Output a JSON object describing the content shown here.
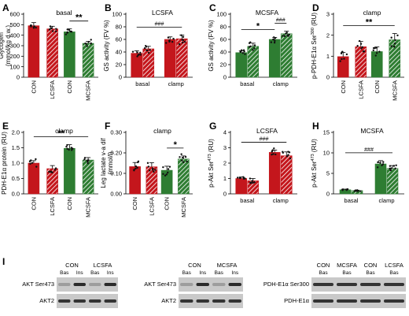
{
  "colors": {
    "con": "#c4161c",
    "ffa": "#2e7d32",
    "hatch_stroke": "#ffffff",
    "point": "#111111"
  },
  "chart_data": [
    {
      "id": "A",
      "type": "bar",
      "title": "basal",
      "ylabel": "Glycogen\n(mmol/kg d.w.)",
      "ylim": [
        0,
        600
      ],
      "yticks": [
        0,
        100,
        200,
        300,
        400,
        500,
        600
      ],
      "groups": [
        {
          "label": "CON"
        },
        {
          "label": "LCSFA"
        },
        {
          "label": "CON"
        },
        {
          "label": "MCSFA"
        }
      ],
      "bars": [
        {
          "value": 490,
          "err": 30,
          "color": "con",
          "hatched": false
        },
        {
          "value": 460,
          "err": 25,
          "color": "con",
          "hatched": true
        },
        {
          "value": 432,
          "err": 28,
          "color": "ffa",
          "hatched": false
        },
        {
          "value": 322,
          "err": 18,
          "color": "ffa",
          "hatched": true
        }
      ],
      "significance": [
        {
          "text": "**",
          "bars": [
            2,
            3
          ],
          "style": "big"
        }
      ],
      "cat_layout": "rotated-under"
    },
    {
      "id": "B",
      "type": "bar",
      "title": "LCSFA",
      "ylabel": "GS activity (FV %)",
      "ylim": [
        0,
        100
      ],
      "yticks": [
        0,
        20,
        40,
        60,
        80,
        100
      ],
      "groups": [
        {
          "label": "basal"
        },
        {
          "label": "clamp"
        }
      ],
      "bars": [
        {
          "value": 38,
          "err": 4,
          "color": "con",
          "hatched": false
        },
        {
          "value": 45,
          "err": 4,
          "color": "con",
          "hatched": true
        },
        {
          "value": 60,
          "err": 4,
          "color": "con",
          "hatched": false
        },
        {
          "value": 61,
          "err": 6,
          "color": "con",
          "hatched": true
        }
      ],
      "significance": [
        {
          "text": "###",
          "bars": [
            0,
            3
          ],
          "style": "small"
        }
      ],
      "cat_layout": "pairs"
    },
    {
      "id": "C",
      "type": "bar",
      "title": "MCSFA",
      "ylabel": "GS activity (FV %)",
      "ylim": [
        0,
        100
      ],
      "yticks": [
        0,
        20,
        40,
        60,
        80,
        100
      ],
      "groups": [
        {
          "label": "basal"
        },
        {
          "label": "clamp"
        }
      ],
      "bars": [
        {
          "value": 39,
          "err": 3,
          "color": "ffa",
          "hatched": false
        },
        {
          "value": 49,
          "err": 5,
          "color": "ffa",
          "hatched": true
        },
        {
          "value": 60,
          "err": 3,
          "color": "ffa",
          "hatched": false
        },
        {
          "value": 69,
          "err": 4,
          "color": "ffa",
          "hatched": true
        }
      ],
      "significance": [
        {
          "text": "*",
          "bars": [
            0,
            2
          ],
          "style": "big"
        },
        {
          "text": "###",
          "bars": [
            2,
            3
          ],
          "style": "small"
        }
      ],
      "cat_layout": "pairs"
    },
    {
      "id": "D",
      "type": "bar",
      "title": "clamp",
      "ylabel": "p-PDH-E1α Ser300 (RU)",
      "ylabel_parts": {
        "main": "p-PDH-E1α Ser",
        "sup": "300",
        "tail": " (RU)"
      },
      "ylim": [
        0,
        3
      ],
      "yticks": [
        0,
        1,
        2,
        3
      ],
      "groups": [
        {
          "label": "CON"
        },
        {
          "label": "LCSFA"
        },
        {
          "label": "CON"
        },
        {
          "label": "MCSFA"
        }
      ],
      "bars": [
        {
          "value": 0.98,
          "err": 0.2,
          "color": "con",
          "hatched": false
        },
        {
          "value": 1.45,
          "err": 0.25,
          "color": "con",
          "hatched": true
        },
        {
          "value": 1.22,
          "err": 0.22,
          "color": "ffa",
          "hatched": false
        },
        {
          "value": 1.78,
          "err": 0.3,
          "color": "ffa",
          "hatched": true
        }
      ],
      "significance": [
        {
          "text": "**",
          "bars": [
            0,
            3
          ],
          "style": "big"
        }
      ],
      "cat_layout": "rotated-under"
    },
    {
      "id": "E",
      "type": "bar",
      "title": "clamp",
      "ylabel": "PDH-E1α protein (RU)",
      "ylim": [
        0,
        2.0
      ],
      "yticks": [
        0,
        0.5,
        1.0,
        1.5,
        2.0
      ],
      "ytick_format": "1dp",
      "groups": [
        {
          "label": "CON"
        },
        {
          "label": "LCSFA"
        },
        {
          "label": "CON"
        },
        {
          "label": "MCSFA"
        }
      ],
      "bars": [
        {
          "value": 1.0,
          "err": 0.08,
          "color": "con",
          "hatched": false
        },
        {
          "value": 0.82,
          "err": 0.1,
          "color": "con",
          "hatched": true
        },
        {
          "value": 1.48,
          "err": 0.12,
          "color": "ffa",
          "hatched": false
        },
        {
          "value": 1.1,
          "err": 0.08,
          "color": "ffa",
          "hatched": true
        }
      ],
      "significance": [
        {
          "text": "**",
          "bars": [
            0,
            3
          ],
          "style": "big"
        }
      ],
      "cat_layout": "rotated-under"
    },
    {
      "id": "F",
      "type": "bar",
      "title": "clamp",
      "ylabel": "Leg lactate v-a dif\n(mmol/l)",
      "ylim": [
        0,
        0.3
      ],
      "yticks": [
        0,
        0.1,
        0.2,
        0.3
      ],
      "ytick_format": "2dp",
      "groups": [
        {
          "label": "CON"
        },
        {
          "label": "LCSFA"
        },
        {
          "label": "CON"
        },
        {
          "label": "MCSFA"
        }
      ],
      "bars": [
        {
          "value": 0.133,
          "err": 0.02,
          "color": "con",
          "hatched": false
        },
        {
          "value": 0.132,
          "err": 0.02,
          "color": "con",
          "hatched": true
        },
        {
          "value": 0.115,
          "err": 0.02,
          "color": "ffa",
          "hatched": false
        },
        {
          "value": 0.17,
          "err": 0.015,
          "color": "ffa",
          "hatched": true
        }
      ],
      "significance": [
        {
          "text": "*",
          "bars": [
            2,
            3
          ],
          "style": "big"
        }
      ],
      "cat_layout": "rotated-under"
    },
    {
      "id": "G",
      "type": "bar",
      "title": "LCSFA",
      "ylabel": "p-Akt Ser473 (RU)",
      "ylabel_parts": {
        "main": "p-Akt Ser",
        "sup": "473",
        "tail": " (RU)"
      },
      "ylim": [
        0,
        4
      ],
      "yticks": [
        0,
        1,
        2,
        3,
        4
      ],
      "groups": [
        {
          "label": "basal"
        },
        {
          "label": "clamp"
        }
      ],
      "bars": [
        {
          "value": 1.0,
          "err": 0.1,
          "color": "con",
          "hatched": false
        },
        {
          "value": 0.85,
          "err": 0.15,
          "color": "con",
          "hatched": true
        },
        {
          "value": 2.7,
          "err": 0.15,
          "color": "con",
          "hatched": false
        },
        {
          "value": 2.48,
          "err": 0.25,
          "color": "con",
          "hatched": true
        }
      ],
      "significance": [
        {
          "text": "###",
          "bars": [
            0,
            3
          ],
          "style": "small"
        }
      ],
      "cat_layout": "pairs"
    },
    {
      "id": "H",
      "type": "bar",
      "title": "MCSFA",
      "ylabel": "p-Akt Ser473 (RU)",
      "ylabel_parts": {
        "main": "p-Akt Ser",
        "sup": "473",
        "tail": " (RU)"
      },
      "ylim": [
        0,
        15
      ],
      "yticks": [
        0,
        5,
        10,
        15
      ],
      "groups": [
        {
          "label": "basal"
        },
        {
          "label": "clamp"
        }
      ],
      "bars": [
        {
          "value": 1.0,
          "err": 0.15,
          "color": "ffa",
          "hatched": false
        },
        {
          "value": 0.8,
          "err": 0.1,
          "color": "ffa",
          "hatched": true
        },
        {
          "value": 7.3,
          "err": 0.8,
          "color": "ffa",
          "hatched": false
        },
        {
          "value": 6.2,
          "err": 0.7,
          "color": "ffa",
          "hatched": true
        }
      ],
      "significance": [
        {
          "text": "###",
          "bars": [
            0,
            3
          ],
          "style": "small"
        }
      ],
      "cat_layout": "pairs"
    }
  ],
  "panel_I": {
    "letter": "I",
    "blot1": {
      "groups": [
        "CON",
        "LCSFA"
      ],
      "lanes": [
        "Bas",
        "Ins",
        "Bas",
        "Ins"
      ],
      "rows": [
        "AKT Ser473",
        "AKT2"
      ]
    },
    "blot2": {
      "groups": [
        "CON",
        "MCSFA"
      ],
      "lanes": [
        "Bas",
        "Ins",
        "Bas",
        "Ins"
      ],
      "rows": [
        "AKT Ser473",
        "AKT2"
      ]
    },
    "blot3": {
      "groups": [
        "CON",
        "MCSFA",
        "CON",
        "LCSFA"
      ],
      "lanes": [
        "Bas",
        "Bas",
        "Bas",
        "Bas"
      ],
      "rows": [
        "PDH-E1α Ser300",
        "PDH-E1α"
      ]
    }
  }
}
